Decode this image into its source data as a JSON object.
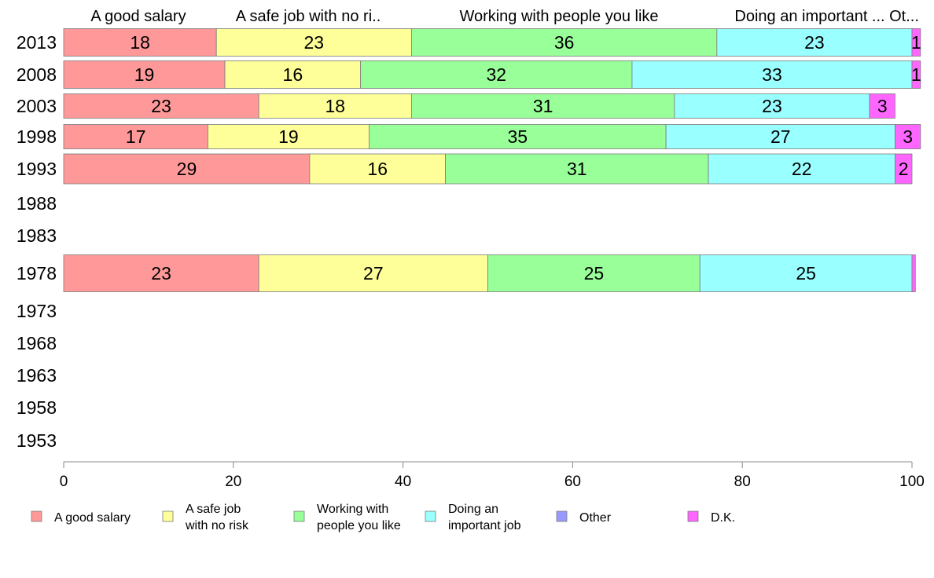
{
  "chart_data": {
    "type": "bar",
    "orientation": "horizontal",
    "stacked": true,
    "xlim": [
      0,
      100
    ],
    "x_ticks": [
      "0",
      "20",
      "40",
      "60",
      "80",
      "100"
    ],
    "grid": false,
    "legend_position": "bottom",
    "top_labels": [
      "A good salary",
      "A safe job with no ri..",
      "Working with people you like",
      "Doing an important ...",
      "Ot..."
    ],
    "categories": [
      "2013",
      "2008",
      "2003",
      "1998",
      "1993",
      "1988",
      "1983",
      "1978",
      "1973",
      "1968",
      "1963",
      "1958",
      "1953"
    ],
    "series": [
      {
        "name": "A good salary",
        "legend": [
          "A good salary"
        ],
        "color": "#FF9999",
        "values": [
          18,
          19,
          23,
          17,
          29,
          null,
          null,
          23,
          null,
          null,
          null,
          null,
          null
        ]
      },
      {
        "name": "A safe job with no risk",
        "legend": [
          "A safe job",
          "with no risk"
        ],
        "color": "#FFFF99",
        "values": [
          23,
          16,
          18,
          19,
          16,
          null,
          null,
          27,
          null,
          null,
          null,
          null,
          null
        ]
      },
      {
        "name": "Working with people you like",
        "legend": [
          "Working with",
          "people you like"
        ],
        "color": "#99FF99",
        "values": [
          36,
          32,
          31,
          35,
          31,
          null,
          null,
          25,
          null,
          null,
          null,
          null,
          null
        ]
      },
      {
        "name": "Doing an important job",
        "legend": [
          "Doing an",
          "important job"
        ],
        "color": "#99FFFF",
        "values": [
          23,
          33,
          23,
          27,
          22,
          null,
          null,
          25,
          null,
          null,
          null,
          null,
          null
        ]
      },
      {
        "name": "Other",
        "legend": [
          "Other"
        ],
        "color": "#9999FF",
        "values": [
          0,
          0,
          0,
          0,
          0,
          null,
          null,
          0,
          null,
          null,
          null,
          null,
          null
        ]
      },
      {
        "name": "D.K.",
        "legend": [
          "D.K."
        ],
        "color": "#FF66FF",
        "values": [
          1,
          1,
          3,
          3,
          2,
          null,
          null,
          0.4,
          null,
          null,
          null,
          null,
          null
        ]
      }
    ]
  }
}
